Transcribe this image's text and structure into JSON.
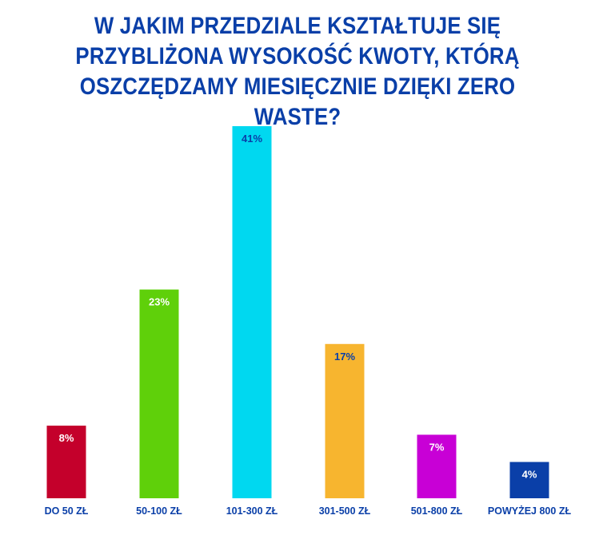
{
  "title_lines": [
    "W JAKIM PRZEDZIALE KSZTAŁTUJE SIĘ",
    "PRZYBLIŻONA WYSOKOŚĆ KWOTY, KTÓRĄ",
    "OSZCZĘDZAMY MIESIĘCZNIE DZIĘKI ZERO WASTE?"
  ],
  "chart_data": {
    "type": "bar",
    "title": "W JAKIM PRZEDZIALE KSZTAŁTUJE SIĘ PRZYBLIŻONA WYSOKOŚĆ KWOTY, KTÓRĄ OSZCZĘDZAMY MIESIĘCZNIE DZIĘKI ZERO WASTE?",
    "categories": [
      "DO 50 ZŁ",
      "50-100 ZŁ",
      "101-300 ZŁ",
      "301-500 ZŁ",
      "501-800 ZŁ",
      "POWYŻEJ 800 ZŁ"
    ],
    "values": [
      8,
      23,
      41,
      17,
      7,
      4
    ],
    "value_labels": [
      "8%",
      "23%",
      "41%",
      "17%",
      "7%",
      "4%"
    ],
    "unit": "%",
    "ylim": [
      0,
      41
    ],
    "grid": false,
    "bar_colors": [
      "#c4002b",
      "#5fd00a",
      "#00d8f0",
      "#f7b52f",
      "#c800d6",
      "#0a3fa8"
    ],
    "label_colors": [
      "#ffffff",
      "#ffffff",
      "#0a3fa8",
      "#0a3fa8",
      "#ffffff",
      "#ffffff"
    ],
    "category_label_color": "#0a3fa8"
  }
}
